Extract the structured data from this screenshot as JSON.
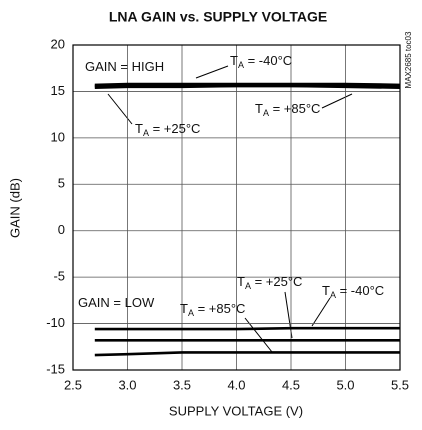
{
  "chart_data": {
    "type": "line",
    "title": "LNA GAIN vs. SUPPLY VOLTAGE",
    "xlabel": "SUPPLY VOLTAGE (V)",
    "ylabel": "GAIN (dB)",
    "side_note": "MAX2685 toc03",
    "x": [
      2.7,
      3.0,
      3.5,
      4.0,
      4.5,
      5.0,
      5.5
    ],
    "xlim": [
      2.5,
      5.5
    ],
    "xticks": [
      2.5,
      {
        "value": 3,
        "label": "3.0"
      },
      3.5,
      {
        "value": 4,
        "label": "4.0"
      },
      4.5,
      {
        "value": 5,
        "label": "5.0"
      },
      5.5
    ],
    "ylim": [
      -15,
      20
    ],
    "yticks": [
      -15,
      -10,
      -5,
      0,
      5,
      10,
      15,
      20
    ],
    "grid": true,
    "series": [
      {
        "color": "#000000",
        "values": [
          15.7,
          15.8,
          15.8,
          15.8,
          15.8,
          15.8,
          15.7
        ]
      },
      {
        "color": "#000000",
        "values": [
          15.4,
          15.5,
          15.5,
          15.6,
          15.6,
          15.6,
          15.6
        ]
      },
      {
        "color": "#000000",
        "values": [
          15.6,
          15.6,
          15.6,
          15.6,
          15.6,
          15.5,
          15.4
        ]
      },
      {
        "color": "#000000",
        "values": [
          -10.6,
          -10.6,
          -10.6,
          -10.6,
          -10.5,
          -10.5,
          -10.5
        ]
      },
      {
        "color": "#000000",
        "values": [
          -11.8,
          -11.8,
          -11.8,
          -11.8,
          -11.8,
          -11.8,
          -11.8
        ]
      },
      {
        "color": "#000000",
        "values": [
          -13.4,
          -13.3,
          -13.1,
          -13.1,
          -13.1,
          -13.1,
          -13.1
        ]
      }
    ],
    "annotations": [
      {
        "text": "GAIN = HIGH"
      },
      {
        "t": "T",
        "sub": "A",
        "text": " = -40°C"
      },
      {
        "t": "T",
        "sub": "A",
        "text": " = +85°C"
      },
      {
        "t": "T",
        "sub": "A",
        "text": " = +25°C"
      },
      {
        "text": "GAIN = LOW"
      },
      {
        "t": "T",
        "sub": "A",
        "text": " = +25°C"
      },
      {
        "t": "T",
        "sub": "A",
        "text": " = -40°C"
      },
      {
        "t": "T",
        "sub": "A",
        "text": " = +85°C"
      }
    ]
  }
}
